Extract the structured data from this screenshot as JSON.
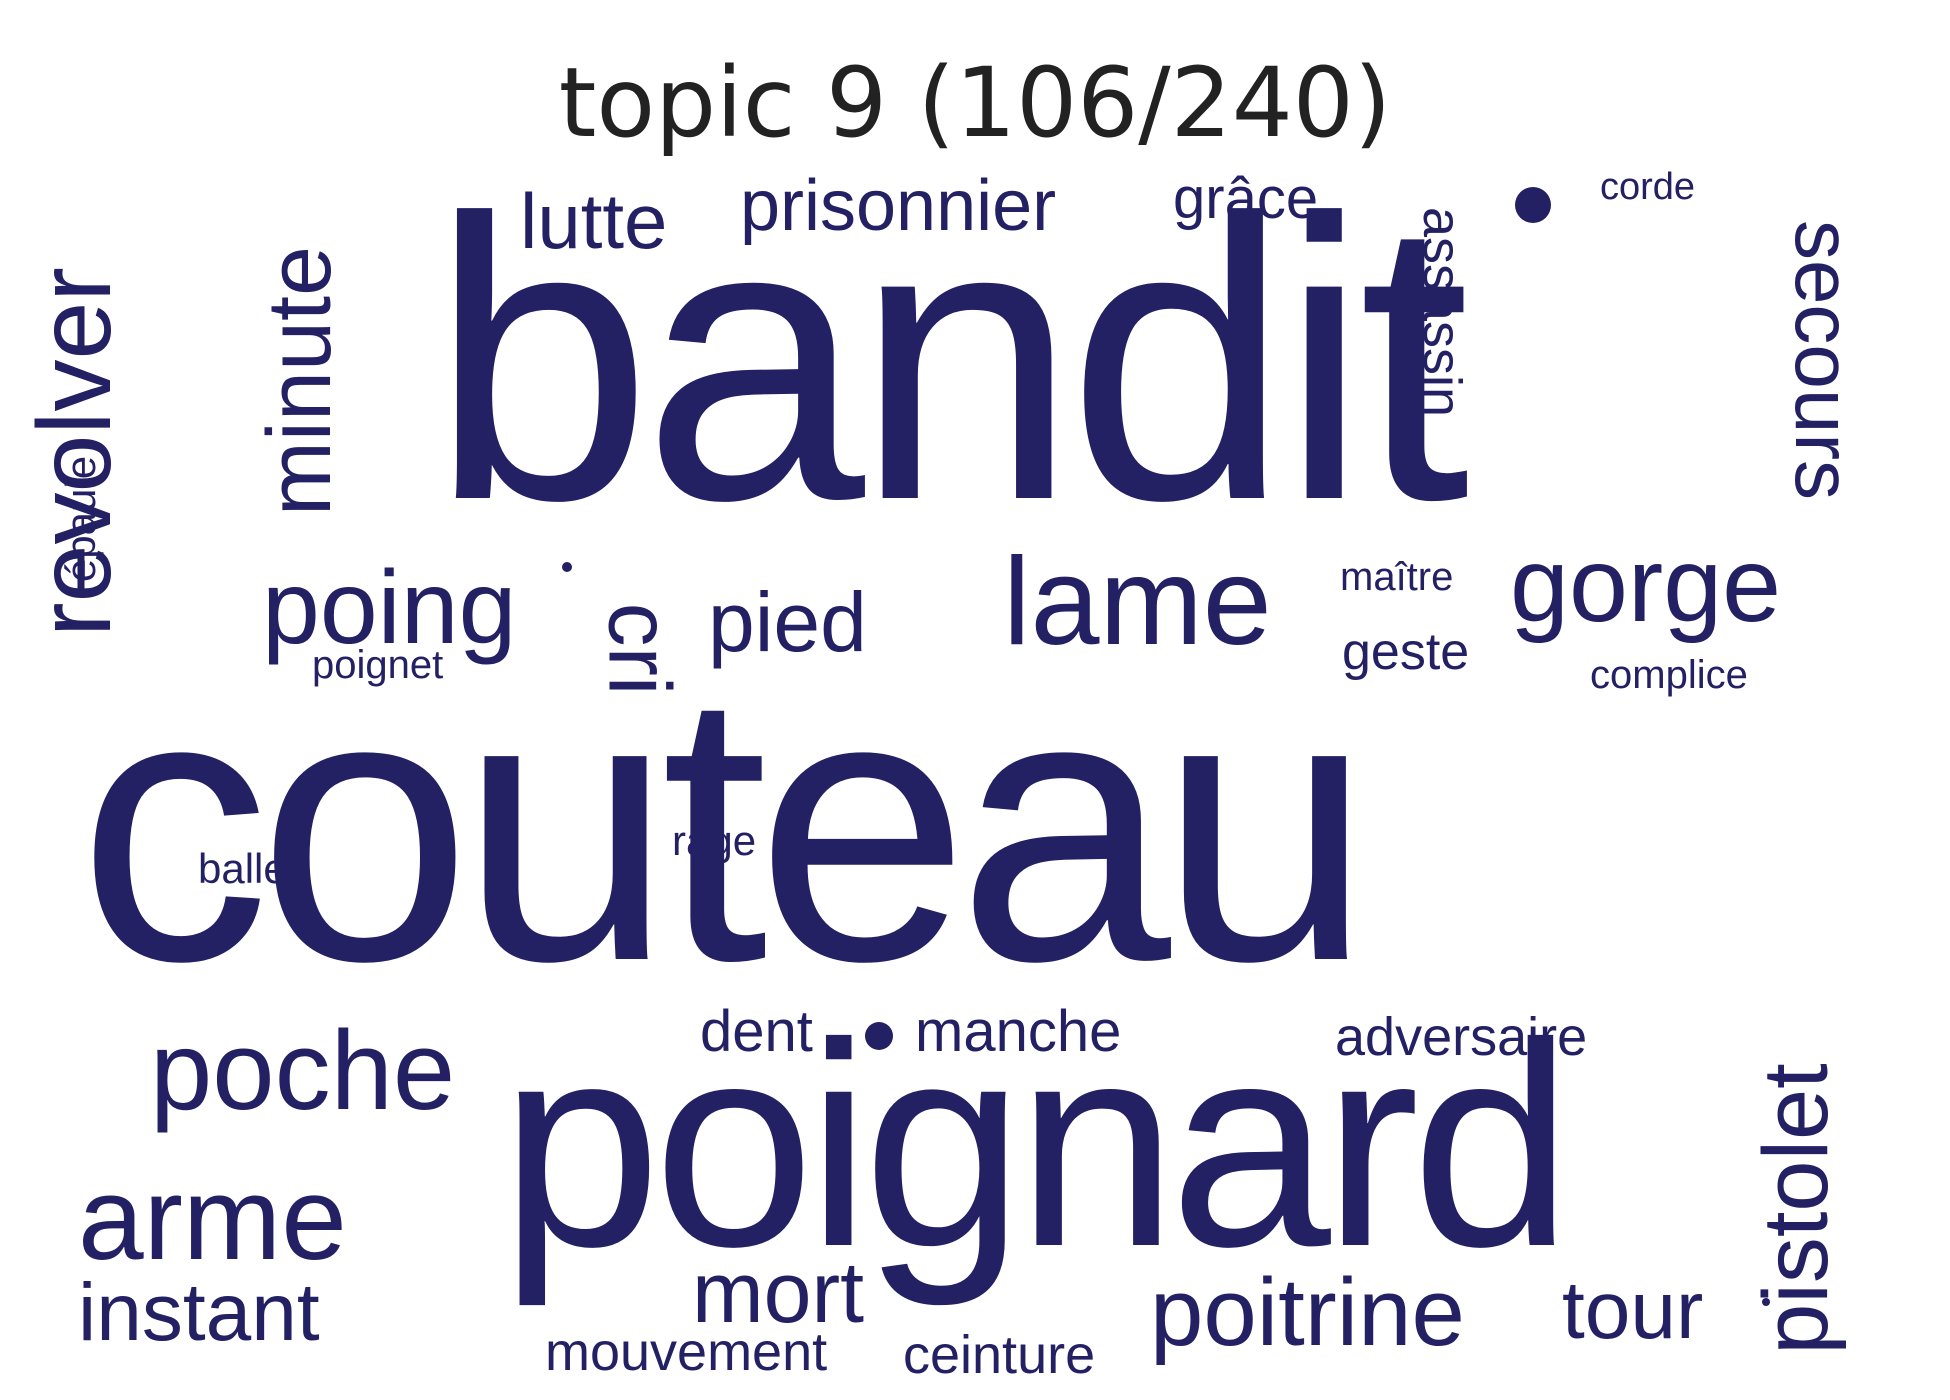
{
  "title": "topic 9 (106/240)",
  "colors": {
    "word": "#232064",
    "title": "#222222",
    "background": "#ffffff"
  },
  "words": [
    {
      "id": "bandit",
      "text": "bandit"
    },
    {
      "id": "couteau",
      "text": "couteau"
    },
    {
      "id": "poignard",
      "text": "poignard"
    },
    {
      "id": "revolver",
      "text": "revolver"
    },
    {
      "id": "minute",
      "text": "minute"
    },
    {
      "id": "lutte",
      "text": "lutte"
    },
    {
      "id": "prisonnier",
      "text": "prisonnier"
    },
    {
      "id": "grace",
      "text": "grâce"
    },
    {
      "id": "assassin",
      "text": "assassin"
    },
    {
      "id": "corde",
      "text": "corde"
    },
    {
      "id": "secours",
      "text": "secours"
    },
    {
      "id": "epaule",
      "text": "épaule"
    },
    {
      "id": "poing",
      "text": "poing"
    },
    {
      "id": "cri",
      "text": "cri"
    },
    {
      "id": "pied",
      "text": "pied"
    },
    {
      "id": "lame",
      "text": "lame"
    },
    {
      "id": "maitre",
      "text": "maître"
    },
    {
      "id": "gorge",
      "text": "gorge"
    },
    {
      "id": "geste",
      "text": "geste"
    },
    {
      "id": "poignet",
      "text": "poignet"
    },
    {
      "id": "complice",
      "text": "complice"
    },
    {
      "id": "balle",
      "text": "balle"
    },
    {
      "id": "rage",
      "text": "rage"
    },
    {
      "id": "poche",
      "text": "poche"
    },
    {
      "id": "dent",
      "text": "dent"
    },
    {
      "id": "manche",
      "text": "manche"
    },
    {
      "id": "adversaire",
      "text": "adversaire"
    },
    {
      "id": "pistolet",
      "text": "pistolet"
    },
    {
      "id": "arme",
      "text": "arme"
    },
    {
      "id": "instant",
      "text": "instant"
    },
    {
      "id": "mort",
      "text": "mort"
    },
    {
      "id": "poitrine",
      "text": "poitrine"
    },
    {
      "id": "tour",
      "text": "tour"
    },
    {
      "id": "mouvement",
      "text": "mouvement"
    },
    {
      "id": "ceinture",
      "text": "ceinture"
    }
  ]
}
